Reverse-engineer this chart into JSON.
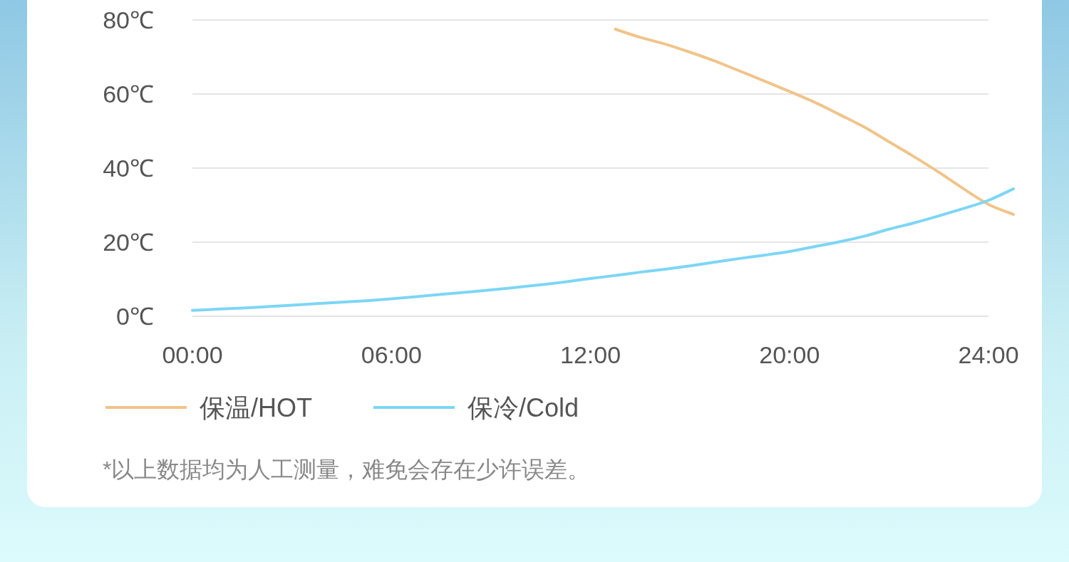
{
  "chart_data": {
    "type": "line",
    "ylim": [
      0,
      80
    ],
    "categories": [
      "00:00",
      null,
      null,
      null,
      null,
      null,
      null,
      null,
      "06:00",
      null,
      null,
      null,
      null,
      null,
      null,
      null,
      "12:00",
      null,
      null,
      null,
      null,
      null,
      null,
      null,
      "20:00",
      null,
      null,
      null,
      null,
      null,
      null,
      null,
      "24:00",
      null
    ],
    "yticks": [
      {
        "value": 0,
        "label": "0℃"
      },
      {
        "value": 20,
        "label": "20℃"
      },
      {
        "value": 40,
        "label": "40℃"
      },
      {
        "value": 60,
        "label": "60℃"
      },
      {
        "value": 80,
        "label": "80℃"
      }
    ],
    "grid": "y",
    "legend": "bottom left",
    "series": [
      {
        "name": "保温/HOT",
        "color": "#f0c48a",
        "values": [
          null,
          null,
          null,
          null,
          null,
          null,
          null,
          null,
          null,
          null,
          null,
          null,
          null,
          null,
          null,
          null,
          null,
          77.5,
          75.3,
          73.5,
          71.3,
          68.9,
          66.2,
          63.5,
          60.7,
          57.8,
          54.5,
          51.1,
          47.1,
          43.1,
          38.9,
          34.4,
          30.2,
          27.5
        ]
      },
      {
        "name": "保冷/Cold",
        "color": "#7dd6f5",
        "values": [
          1.6,
          1.9,
          2.2,
          2.6,
          3.0,
          3.4,
          3.8,
          4.2,
          4.7,
          5.3,
          5.9,
          6.5,
          7.1,
          7.8,
          8.5,
          9.3,
          10.2,
          11.0,
          11.9,
          12.7,
          13.6,
          14.6,
          15.6,
          16.5,
          17.5,
          18.8,
          20.1,
          21.6,
          23.5,
          25.2,
          27.1,
          29.1,
          31.3,
          34.4
        ]
      }
    ],
    "annotations": [
      "*以上数据均为人工测量，难免会存在少许误差。"
    ]
  }
}
